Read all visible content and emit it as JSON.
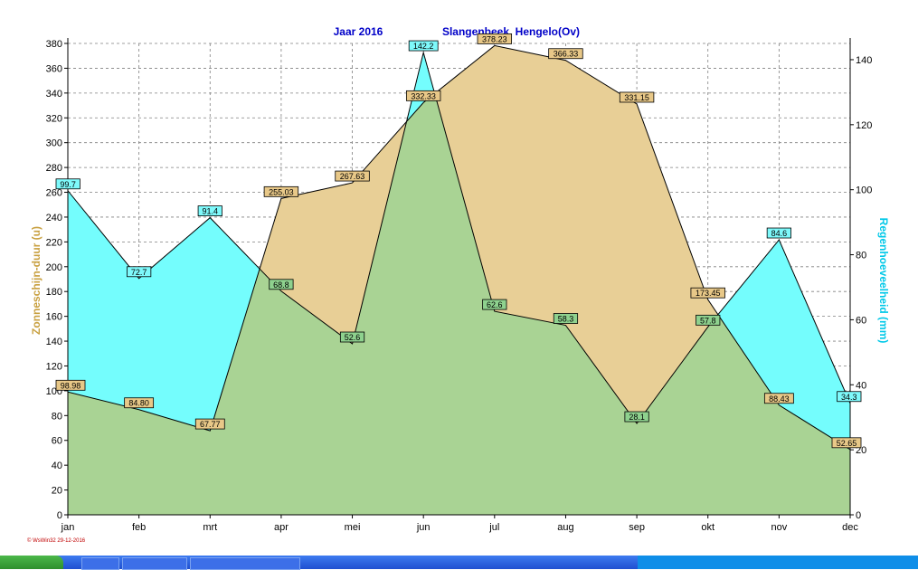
{
  "header": {
    "year_label": "Jaar  2016",
    "station_label": "Slangenbeek, Hengelo(Ov)"
  },
  "credit": "© WsWin32  29-12-2016",
  "colors": {
    "sun_fill": "#e8cf96",
    "rain_fill": "#74fdfd",
    "overlap_fill": "#a9d394",
    "title_color": "#0000c8",
    "left_axis_color": "#c8a040",
    "right_axis_color": "#00c8e8"
  },
  "chart_data": {
    "type": "area",
    "title": "Jaar  2016     Slangenbeek, Hengelo(Ov)",
    "categories": [
      "jan",
      "feb",
      "mrt",
      "apr",
      "mei",
      "jun",
      "jul",
      "aug",
      "sep",
      "okt",
      "nov",
      "dec"
    ],
    "ylabel": "Zonneschijn-duur  (u)",
    "y2label": "Regenhoeveelheid  (mm)",
    "ylim": [
      0,
      380
    ],
    "y2lim": [
      0,
      145
    ],
    "yticks": [
      0,
      20,
      40,
      60,
      80,
      100,
      120,
      140,
      160,
      180,
      200,
      220,
      240,
      260,
      280,
      300,
      320,
      340,
      360,
      380
    ],
    "y2ticks": [
      0,
      20,
      40,
      60,
      80,
      100,
      120,
      140
    ],
    "grid": true,
    "series": [
      {
        "name": "Zonneschijn-duur",
        "axis": "left",
        "values": [
          98.98,
          84.8,
          67.77,
          255.03,
          267.63,
          332.33,
          378.23,
          366.33,
          331.15,
          173.45,
          88.43,
          52.65
        ],
        "labels": [
          "98.98",
          "84.80",
          "67.77",
          "255.03",
          "267.63",
          "332.33",
          "378.23",
          "366.33",
          "331.15",
          "173.45",
          "88.43",
          "52.65"
        ]
      },
      {
        "name": "Regenhoeveelheid",
        "axis": "right",
        "values": [
          99.7,
          72.7,
          91.4,
          68.8,
          52.6,
          142.2,
          62.6,
          58.3,
          28.1,
          57.8,
          84.6,
          34.3
        ],
        "labels": [
          "99.7",
          "72.7",
          "91.4",
          "68.8",
          "52.6",
          "142.2",
          "62.6",
          "58.3",
          "28.1",
          "57.8",
          "84.6",
          "34.3"
        ]
      }
    ]
  }
}
